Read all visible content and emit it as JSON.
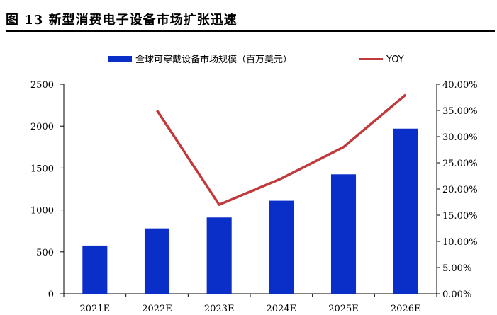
{
  "figure_title": "图 13 新型消费电子设备市场扩张迅速",
  "chart_data": {
    "type": "bar",
    "categories": [
      "2021E",
      "2022E",
      "2023E",
      "2024E",
      "2025E",
      "2026E"
    ],
    "series": [
      {
        "name": "全球可穿戴设备市场规模（百万美元）",
        "type": "bar",
        "axis": "left",
        "values": [
          575,
          780,
          910,
          1110,
          1425,
          1970
        ]
      },
      {
        "name": "YOY",
        "type": "line",
        "axis": "right",
        "values": [
          null,
          0.35,
          0.17,
          0.22,
          0.28,
          0.38
        ]
      }
    ],
    "ylim_left": [
      0,
      2500
    ],
    "ylim_right": [
      0,
      0.4
    ],
    "left_ticks": [
      "0",
      "500",
      "1000",
      "1500",
      "2000",
      "2500"
    ],
    "right_ticks": [
      "0.00%",
      "5.00%",
      "10.00%",
      "15.00%",
      "20.00%",
      "25.00%",
      "30.00%",
      "35.00%",
      "40.00%"
    ],
    "colors": {
      "bar": "#0a2fc9",
      "line": "#c0393b"
    },
    "legend_position": "top"
  }
}
